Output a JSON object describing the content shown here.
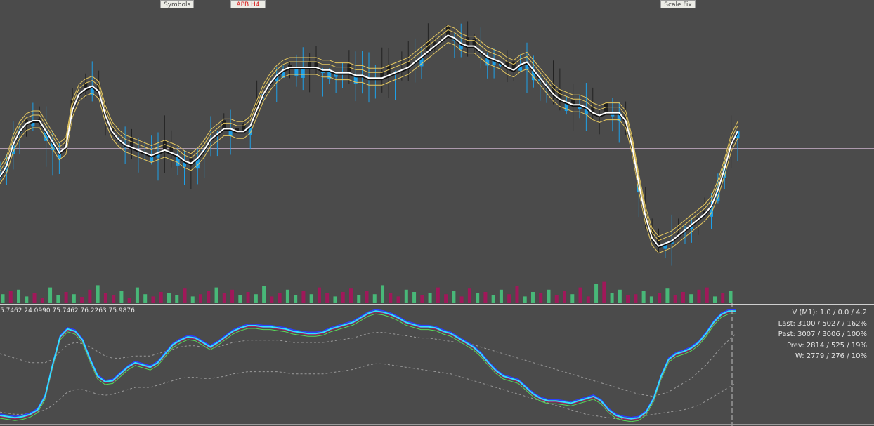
{
  "toolbar": {
    "symbols_label": "Symbols",
    "timeframe_label": "APB H4",
    "scale_fix_label": "Scale Fix"
  },
  "indicator": {
    "values_text": "5.7462 24.0990 75.7462 76.2263 75.9876"
  },
  "stats": {
    "lines": [
      "V (M1): 1.0 / 0.0 / 4.2",
      "Last: 3100 / 5027 / 162%",
      "Past: 3007 / 3006 / 100%",
      "Prev: 2814 / 525 / 19%",
      "W: 2779 / 276 / 10%"
    ]
  },
  "colors": {
    "background": "#4b4b4b",
    "bull_candle": "#1ea0e8",
    "bear_candle": "#1e1e1e",
    "ma_main": "#ffffff",
    "envelope": "#e6c860",
    "volume_up": "#48b878",
    "volume_down": "#a0185a",
    "osc_cyan": "#30e0ff",
    "osc_magenta": "#b01860",
    "osc_blue": "#2a40ff",
    "osc_green": "#58d858"
  },
  "chart_data": [
    {
      "type": "candlestick",
      "title": "",
      "series": [
        {
          "name": "",
          "values": [
            39,
            43,
            51,
            56,
            59,
            60,
            60,
            56,
            52,
            48,
            50,
            64,
            70,
            72,
            73,
            71,
            62,
            56,
            53,
            51,
            50,
            49,
            48,
            47,
            48,
            49,
            48,
            47,
            45,
            44,
            46,
            49,
            53,
            55,
            57,
            57,
            56,
            56,
            58,
            64,
            70,
            74,
            77,
            79,
            80,
            80,
            80,
            80,
            80,
            79,
            79,
            78,
            78,
            78,
            77,
            77,
            76,
            76,
            76,
            77,
            78,
            79,
            80,
            82,
            84,
            86,
            88,
            90,
            92,
            91,
            89,
            88,
            88,
            86,
            84,
            83,
            82,
            80,
            79,
            81,
            82,
            79,
            76,
            73,
            70,
            68,
            67,
            66,
            66,
            65,
            63,
            62,
            63,
            63,
            63,
            60,
            50,
            36,
            24,
            16,
            13,
            14,
            15,
            17,
            19,
            21,
            23,
            25,
            28,
            34,
            42,
            51,
            56
          ]
        }
      ],
      "ylim": [
        0,
        100
      ],
      "horizontal_line_pct": 49.5
    },
    {
      "type": "bar",
      "title": "",
      "series": [
        {
          "name": "",
          "values": [
            40,
            55,
            60,
            30,
            45,
            25,
            70,
            35,
            50,
            40,
            28,
            60,
            80,
            45,
            35,
            55,
            25,
            70,
            40,
            30,
            50,
            45,
            35,
            65,
            30,
            40,
            55,
            70,
            45,
            60,
            35,
            50,
            40,
            75,
            30,
            45,
            60,
            35,
            55,
            40,
            70,
            45,
            30,
            50,
            65,
            35,
            55,
            40,
            80,
            45,
            30,
            60,
            50,
            35,
            45,
            70,
            40,
            55,
            30,
            65,
            45,
            50,
            35,
            60,
            40,
            75,
            30,
            50,
            45,
            60,
            35,
            55,
            40,
            70,
            30,
            85,
            95,
            45,
            60,
            35,
            40,
            55,
            30,
            45,
            65,
            35,
            50,
            40,
            60,
            70,
            30,
            45,
            55
          ]
        }
      ],
      "ylim": [
        0,
        100
      ]
    },
    {
      "type": "line",
      "title": "",
      "series": [
        {
          "name": "",
          "values": [
            5,
            4,
            3,
            4,
            6,
            10,
            22,
            50,
            75,
            82,
            80,
            72,
            55,
            40,
            35,
            36,
            42,
            48,
            52,
            50,
            48,
            52,
            60,
            68,
            72,
            75,
            74,
            70,
            66,
            70,
            75,
            80,
            83,
            85,
            85,
            84,
            84,
            83,
            82,
            80,
            79,
            78,
            78,
            79,
            82,
            84,
            86,
            88,
            92,
            96,
            98,
            97,
            95,
            92,
            88,
            86,
            84,
            84,
            83,
            80,
            78,
            74,
            70,
            66,
            60,
            52,
            45,
            40,
            38,
            36,
            30,
            24,
            20,
            18,
            18,
            17,
            16,
            18,
            20,
            22,
            18,
            10,
            5,
            3,
            2,
            3,
            8,
            20,
            40,
            55,
            60,
            62,
            65,
            70,
            78,
            88,
            95,
            98,
            98
          ]
        },
        {
          "name": "",
          "values": [
            60,
            58,
            56,
            54,
            52,
            52,
            52,
            55,
            62,
            68,
            70,
            69,
            66,
            62,
            58,
            56,
            56,
            57,
            58,
            58,
            58,
            60,
            62,
            64,
            66,
            67,
            67,
            66,
            65,
            66,
            68,
            70,
            71,
            72,
            72,
            72,
            72,
            72,
            71,
            70,
            70,
            70,
            70,
            70,
            71,
            72,
            73,
            74,
            76,
            78,
            79,
            79,
            78,
            77,
            76,
            75,
            74,
            74,
            73,
            72,
            71,
            70,
            70,
            68,
            66,
            64,
            62,
            60,
            58,
            56,
            54,
            52,
            50,
            48,
            46,
            44,
            42,
            40,
            38,
            36,
            34,
            32,
            30,
            28,
            26,
            24,
            23,
            22,
            24,
            26,
            30,
            34,
            38,
            44,
            50,
            58,
            66,
            72,
            78
          ]
        },
        {
          "name": "",
          "values": [
            8,
            7,
            6,
            6,
            7,
            8,
            10,
            14,
            20,
            26,
            28,
            28,
            26,
            24,
            23,
            24,
            26,
            28,
            30,
            30,
            30,
            32,
            34,
            36,
            38,
            39,
            39,
            38,
            38,
            39,
            40,
            42,
            43,
            44,
            44,
            44,
            44,
            44,
            43,
            42,
            42,
            42,
            42,
            42,
            43,
            44,
            45,
            46,
            48,
            50,
            51,
            51,
            50,
            49,
            48,
            47,
            46,
            45,
            44,
            43,
            42,
            40,
            38,
            36,
            34,
            32,
            30,
            28,
            26,
            24,
            22,
            20,
            18,
            16,
            14,
            12,
            10,
            8,
            6,
            5,
            4,
            3,
            2,
            2,
            3,
            4,
            5,
            6,
            7,
            8,
            9,
            10,
            12,
            14,
            18,
            22,
            26,
            30,
            34
          ]
        }
      ],
      "ylim": [
        0,
        100
      ]
    }
  ]
}
